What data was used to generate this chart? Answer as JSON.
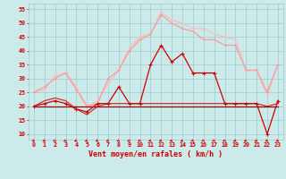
{
  "x": [
    0,
    1,
    2,
    3,
    4,
    5,
    6,
    7,
    8,
    9,
    10,
    11,
    12,
    13,
    14,
    15,
    16,
    17,
    18,
    19,
    20,
    21,
    22,
    23
  ],
  "line_dark_red": [
    20,
    21,
    22,
    21,
    19,
    18,
    21,
    21,
    27,
    21,
    21,
    35,
    42,
    36,
    39,
    32,
    32,
    32,
    21,
    21,
    21,
    21,
    10,
    22
  ],
  "line_dark2": [
    20,
    20,
    20,
    20,
    20,
    20,
    20,
    20,
    20,
    20,
    20,
    20,
    20,
    20,
    20,
    20,
    20,
    20,
    20,
    20,
    20,
    20,
    20,
    20
  ],
  "line_med_red": [
    20,
    22,
    23,
    22,
    19,
    17,
    20,
    21,
    21,
    21,
    21,
    21,
    21,
    21,
    21,
    21,
    21,
    21,
    21,
    21,
    21,
    21,
    20,
    21
  ],
  "line_pink1": [
    25,
    27,
    30,
    32,
    26,
    20,
    21,
    30,
    33,
    40,
    44,
    46,
    53,
    50,
    48,
    47,
    44,
    44,
    42,
    42,
    33,
    33,
    25,
    35
  ],
  "line_pink2": [
    25,
    26,
    31,
    32,
    27,
    20,
    22,
    28,
    33,
    41,
    45,
    46,
    54,
    51,
    50,
    48,
    48,
    46,
    45,
    44,
    33,
    33,
    24,
    35
  ],
  "bg_color": "#cceaea",
  "grid_color": "#99cccc",
  "c_dark_red": "#cc0000",
  "c_dark2": "#990000",
  "c_med_red": "#cc3333",
  "c_pink1": "#ff9999",
  "c_pink2": "#ffbbbb",
  "xlabel": "Vent moyen/en rafales ( km/h )",
  "ylim": [
    8,
    57
  ],
  "xlim": [
    -0.5,
    23.5
  ],
  "yticks": [
    10,
    15,
    20,
    25,
    30,
    35,
    40,
    45,
    50,
    55
  ],
  "xticks": [
    0,
    1,
    2,
    3,
    4,
    5,
    6,
    7,
    8,
    9,
    10,
    11,
    12,
    13,
    14,
    15,
    16,
    17,
    18,
    19,
    20,
    21,
    22,
    23
  ]
}
